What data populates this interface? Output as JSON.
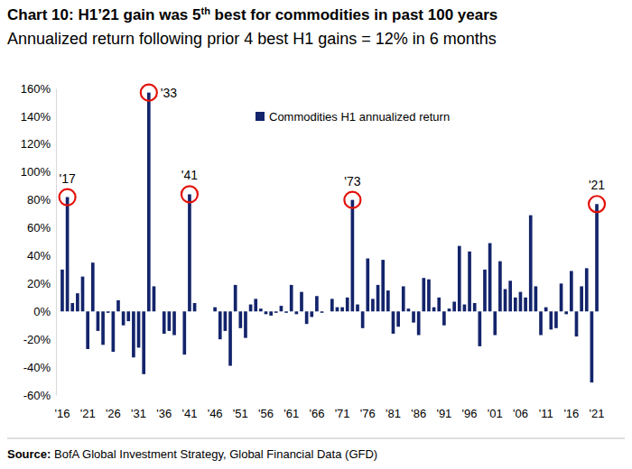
{
  "chart_data": {
    "type": "bar",
    "title": "Chart 10: H1’21 gain was 5th best for commodities in past 100 years",
    "subtitle": "Annualized return following prior 4 best H1 gains = 12% in 6 months",
    "source": "Source: BofA Global Investment Strategy, Global Financial Data (GFD)",
    "categories": [
      "'16",
      null,
      null,
      null,
      null,
      "'21",
      null,
      null,
      null,
      null,
      "'26",
      null,
      null,
      null,
      null,
      "'31",
      null,
      null,
      null,
      null,
      "'36",
      null,
      null,
      null,
      null,
      "'41",
      null,
      null,
      null,
      null,
      "'46",
      null,
      null,
      null,
      null,
      "'51",
      null,
      null,
      null,
      null,
      "'56",
      null,
      null,
      null,
      null,
      "'61",
      null,
      null,
      null,
      null,
      "'66",
      null,
      null,
      null,
      null,
      "'71",
      null,
      null,
      null,
      null,
      "'76",
      null,
      null,
      null,
      null,
      "'81",
      null,
      null,
      null,
      null,
      "'86",
      null,
      null,
      null,
      null,
      "'91",
      null,
      null,
      null,
      null,
      "'96",
      null,
      null,
      null,
      null,
      "'01",
      null,
      null,
      null,
      null,
      "'06",
      null,
      null,
      null,
      null,
      "'11",
      null,
      null,
      null,
      null,
      "'16",
      null,
      null,
      null,
      null,
      "'21"
    ],
    "series": [
      {
        "name": "Commodities H1 annualized return",
        "color": "#13246b",
        "values": [
          30,
          82,
          6,
          13,
          25,
          -27,
          35,
          -14,
          -24,
          -1,
          -29,
          8,
          -10,
          -7,
          -33,
          -26,
          -45,
          157,
          18,
          0,
          -16,
          -14,
          -17,
          0,
          -31,
          84,
          6,
          0,
          0,
          0,
          3,
          -20,
          -14,
          -39,
          19,
          -12,
          -19,
          5,
          9,
          2,
          -2,
          -3,
          -1,
          4,
          -1,
          19,
          -2,
          14,
          -9,
          -4,
          11,
          -1,
          0,
          9,
          3,
          3,
          10,
          80,
          5,
          -12,
          38,
          9,
          19,
          37,
          15,
          -16,
          -11,
          18,
          2,
          -8,
          -17,
          24,
          23,
          3,
          10,
          -10,
          2,
          7,
          47,
          5,
          43,
          6,
          -25,
          30,
          49,
          -17,
          36,
          16,
          22,
          10,
          14,
          10,
          69,
          18,
          -17,
          3,
          -13,
          -12,
          20,
          -2,
          29,
          -18,
          18,
          31,
          -51,
          77
        ]
      }
    ],
    "annotations": [
      {
        "text": "'17",
        "index": 1
      },
      {
        "text": "'33",
        "index": 17
      },
      {
        "text": "'41",
        "index": 25
      },
      {
        "text": "'73",
        "index": 57
      },
      {
        "text": "'21",
        "index": 105
      }
    ],
    "ylim": [
      -60,
      160
    ],
    "yticks": [
      {
        "value": -60,
        "label": "-60%"
      },
      {
        "value": -40,
        "label": "-40%"
      },
      {
        "value": -20,
        "label": "-20%"
      },
      {
        "value": 0,
        "label": "0%"
      },
      {
        "value": 20,
        "label": "20%"
      },
      {
        "value": 40,
        "label": "40%"
      },
      {
        "value": 60,
        "label": "60%"
      },
      {
        "value": 80,
        "label": "80%"
      },
      {
        "value": 100,
        "label": "100%"
      },
      {
        "value": 120,
        "label": "120%"
      },
      {
        "value": 140,
        "label": "140%"
      },
      {
        "value": 160,
        "label": "160%"
      }
    ],
    "grid": false,
    "legend": "top"
  }
}
